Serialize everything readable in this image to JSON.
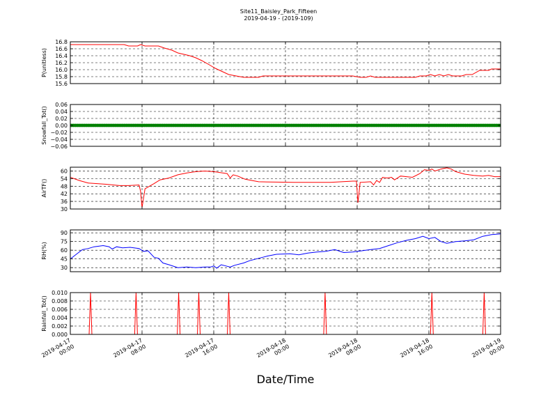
{
  "figure": {
    "title_line1": "Site11_Baisley_Park_Fifteen",
    "title_line2": "2019-04-19 - (2019-109)",
    "xlabel": "Date/Time"
  },
  "chart_data": {
    "type": "line",
    "x_axis": {
      "type": "datetime",
      "range": [
        "2019-04-17 00:00",
        "2019-04-19 00:00"
      ],
      "ticks": [
        {
          "value": "2019-04-17 00:00",
          "line1": "2019-04-17",
          "line2": "00:00"
        },
        {
          "value": "2019-04-17 08:00",
          "line1": "2019-04-17",
          "line2": "08:00"
        },
        {
          "value": "2019-04-17 16:00",
          "line1": "2019-04-17",
          "line2": "16:00"
        },
        {
          "value": "2019-04-18 00:00",
          "line1": "2019-04-18",
          "line2": "00:00"
        },
        {
          "value": "2019-04-18 08:00",
          "line1": "2019-04-18",
          "line2": "08:00"
        },
        {
          "value": "2019-04-18 16:00",
          "line1": "2019-04-18",
          "line2": "16:00"
        },
        {
          "value": "2019-04-19 00:00",
          "line1": "2019-04-19",
          "line2": "00:00"
        }
      ]
    },
    "grid": true,
    "panels": [
      {
        "ylabel": "P(unitless)",
        "ylim": [
          15.6,
          16.8
        ],
        "yticks": [
          "16.8",
          "16.6",
          "16.4",
          "16.2",
          "16.0",
          "15.8",
          "15.6"
        ],
        "ytick_values": [
          16.8,
          16.6,
          16.4,
          16.2,
          16.0,
          15.8,
          15.6
        ],
        "color": "#ff0000",
        "style": "line",
        "points": [
          [
            "2019-04-17 00:00",
            16.72
          ],
          [
            "2019-04-17 03:00",
            16.72
          ],
          [
            "2019-04-17 06:00",
            16.72
          ],
          [
            "2019-04-17 06:30",
            16.68
          ],
          [
            "2019-04-17 07:30",
            16.68
          ],
          [
            "2019-04-17 07:50",
            16.72
          ],
          [
            "2019-04-17 08:20",
            16.68
          ],
          [
            "2019-04-17 09:50",
            16.68
          ],
          [
            "2019-04-17 10:30",
            16.62
          ],
          [
            "2019-04-17 11:20",
            16.56
          ],
          [
            "2019-04-17 12:00",
            16.48
          ],
          [
            "2019-04-17 12:40",
            16.44
          ],
          [
            "2019-04-17 13:20",
            16.4
          ],
          [
            "2019-04-17 14:00",
            16.34
          ],
          [
            "2019-04-17 14:40",
            16.26
          ],
          [
            "2019-04-17 15:30",
            16.14
          ],
          [
            "2019-04-17 16:10",
            16.04
          ],
          [
            "2019-04-17 17:00",
            15.94
          ],
          [
            "2019-04-17 17:40",
            15.86
          ],
          [
            "2019-04-17 18:30",
            15.82
          ],
          [
            "2019-04-17 19:20",
            15.78
          ],
          [
            "2019-04-17 21:00",
            15.78
          ],
          [
            "2019-04-17 21:30",
            15.82
          ],
          [
            "2019-04-18 07:30",
            15.82
          ],
          [
            "2019-04-18 08:20",
            15.78
          ],
          [
            "2019-04-18 09:00",
            15.78
          ],
          [
            "2019-04-18 09:30",
            15.82
          ],
          [
            "2019-04-18 10:00",
            15.78
          ],
          [
            "2019-04-18 14:30",
            15.78
          ],
          [
            "2019-04-18 15:00",
            15.82
          ],
          [
            "2019-04-18 15:40",
            15.82
          ],
          [
            "2019-04-18 16:10",
            15.86
          ],
          [
            "2019-04-18 16:40",
            15.82
          ],
          [
            "2019-04-18 17:10",
            15.86
          ],
          [
            "2019-04-18 17:40",
            15.82
          ],
          [
            "2019-04-18 18:10",
            15.86
          ],
          [
            "2019-04-18 18:40",
            15.82
          ],
          [
            "2019-04-18 19:40",
            15.82
          ],
          [
            "2019-04-18 20:10",
            15.86
          ],
          [
            "2019-04-18 20:50",
            15.86
          ],
          [
            "2019-04-18 21:40",
            15.98
          ],
          [
            "2019-04-18 22:40",
            15.98
          ],
          [
            "2019-04-18 23:00",
            16.02
          ],
          [
            "2019-04-19 00:00",
            16.02
          ]
        ]
      },
      {
        "ylabel": "Snowfall_Tot()",
        "ylim": [
          -0.06,
          0.06
        ],
        "yticks": [
          "0.06",
          "0.04",
          "0.02",
          "0.00",
          "−0.02",
          "−0.04",
          "−0.06"
        ],
        "ytick_values": [
          0.06,
          0.04,
          0.02,
          0.0,
          -0.02,
          -0.04,
          -0.06
        ],
        "color": "#008000",
        "style": "markers",
        "constant_value": 0.0,
        "points": [
          [
            "2019-04-17 00:00",
            0.0
          ],
          [
            "2019-04-19 00:00",
            0.0
          ]
        ]
      },
      {
        "ylabel": "AirTF()",
        "ylim": [
          30,
          63
        ],
        "yticks": [
          "60",
          "54",
          "48",
          "42",
          "36",
          "30"
        ],
        "ytick_values": [
          60,
          54,
          48,
          42,
          36,
          30
        ],
        "color": "#ff0000",
        "style": "line",
        "points": [
          [
            "2019-04-17 00:00",
            55
          ],
          [
            "2019-04-17 01:00",
            52.5
          ],
          [
            "2019-04-17 02:00",
            50.5
          ],
          [
            "2019-04-17 04:00",
            49.5
          ],
          [
            "2019-04-17 05:30",
            48.5
          ],
          [
            "2019-04-17 06:30",
            48.5
          ],
          [
            "2019-04-17 07:40",
            49
          ],
          [
            "2019-04-17 07:50",
            44
          ],
          [
            "2019-04-17 08:00",
            31
          ],
          [
            "2019-04-17 08:20",
            46
          ],
          [
            "2019-04-17 09:20",
            50
          ],
          [
            "2019-04-17 10:00",
            53
          ],
          [
            "2019-04-17 11:00",
            54.5
          ],
          [
            "2019-04-17 12:00",
            57
          ],
          [
            "2019-04-17 13:00",
            58.5
          ],
          [
            "2019-04-17 14:00",
            59.5
          ],
          [
            "2019-04-17 15:00",
            60
          ],
          [
            "2019-04-17 16:00",
            59.5
          ],
          [
            "2019-04-17 17:00",
            58.5
          ],
          [
            "2019-04-17 17:30",
            58
          ],
          [
            "2019-04-17 17:50",
            54.5
          ],
          [
            "2019-04-17 18:10",
            57
          ],
          [
            "2019-04-17 18:40",
            56
          ],
          [
            "2019-04-17 19:30",
            53.5
          ],
          [
            "2019-04-17 21:00",
            51.5
          ],
          [
            "2019-04-18 01:00",
            51
          ],
          [
            "2019-04-18 05:00",
            51
          ],
          [
            "2019-04-18 07:30",
            52
          ],
          [
            "2019-04-18 07:55",
            52
          ],
          [
            "2019-04-18 08:05",
            35
          ],
          [
            "2019-04-18 08:20",
            51
          ],
          [
            "2019-04-18 09:30",
            51.5
          ],
          [
            "2019-04-18 09:50",
            49
          ],
          [
            "2019-04-18 10:10",
            52.5
          ],
          [
            "2019-04-18 10:30",
            51
          ],
          [
            "2019-04-18 10:50",
            55
          ],
          [
            "2019-04-18 11:20",
            54.5
          ],
          [
            "2019-04-18 11:50",
            55
          ],
          [
            "2019-04-18 12:10",
            53
          ],
          [
            "2019-04-18 12:50",
            56
          ],
          [
            "2019-04-18 13:30",
            55.5
          ],
          [
            "2019-04-18 14:10",
            55
          ],
          [
            "2019-04-18 15:00",
            58
          ],
          [
            "2019-04-18 15:30",
            61
          ],
          [
            "2019-04-18 16:00",
            60.5
          ],
          [
            "2019-04-18 16:20",
            61.5
          ],
          [
            "2019-04-18 16:40",
            60
          ],
          [
            "2019-04-18 17:20",
            61.5
          ],
          [
            "2019-04-18 18:00",
            62.5
          ],
          [
            "2019-04-18 18:30",
            61.5
          ],
          [
            "2019-04-18 19:00",
            59.5
          ],
          [
            "2019-04-18 20:00",
            57.5
          ],
          [
            "2019-04-18 21:00",
            56.5
          ],
          [
            "2019-04-18 22:00",
            56
          ],
          [
            "2019-04-18 22:40",
            56.5
          ],
          [
            "2019-04-18 23:20",
            55.5
          ],
          [
            "2019-04-19 00:00",
            55.5
          ]
        ]
      },
      {
        "ylabel": "RH(%)",
        "ylim": [
          23,
          95
        ],
        "yticks": [
          "90",
          "75",
          "60",
          "45",
          "30"
        ],
        "ytick_values": [
          90,
          75,
          60,
          45,
          30
        ],
        "color": "#0000ff",
        "style": "line",
        "points": [
          [
            "2019-04-17 00:00",
            45
          ],
          [
            "2019-04-17 00:40",
            53
          ],
          [
            "2019-04-17 01:20",
            61
          ],
          [
            "2019-04-17 02:00",
            63
          ],
          [
            "2019-04-17 02:40",
            66
          ],
          [
            "2019-04-17 03:40",
            68
          ],
          [
            "2019-04-17 04:20",
            66
          ],
          [
            "2019-04-17 04:40",
            62
          ],
          [
            "2019-04-17 05:10",
            66
          ],
          [
            "2019-04-17 05:50",
            64
          ],
          [
            "2019-04-17 06:40",
            65
          ],
          [
            "2019-04-17 07:40",
            63
          ],
          [
            "2019-04-17 08:10",
            58
          ],
          [
            "2019-04-17 08:40",
            59
          ],
          [
            "2019-04-17 09:20",
            48
          ],
          [
            "2019-04-17 09:50",
            46
          ],
          [
            "2019-04-17 10:20",
            38
          ],
          [
            "2019-04-17 11:00",
            35
          ],
          [
            "2019-04-17 12:00",
            30
          ],
          [
            "2019-04-17 13:00",
            31
          ],
          [
            "2019-04-17 14:00",
            30
          ],
          [
            "2019-04-17 15:00",
            31
          ],
          [
            "2019-04-17 15:40",
            31
          ],
          [
            "2019-04-17 16:00",
            33
          ],
          [
            "2019-04-17 16:20",
            29
          ],
          [
            "2019-04-17 16:50",
            35
          ],
          [
            "2019-04-17 17:20",
            33
          ],
          [
            "2019-04-17 17:50",
            31
          ],
          [
            "2019-04-17 18:20",
            34
          ],
          [
            "2019-04-17 19:20",
            38
          ],
          [
            "2019-04-17 20:00",
            42
          ],
          [
            "2019-04-17 21:00",
            46
          ],
          [
            "2019-04-17 22:00",
            50
          ],
          [
            "2019-04-17 23:00",
            53
          ],
          [
            "2019-04-18 00:30",
            54
          ],
          [
            "2019-04-18 01:30",
            52
          ],
          [
            "2019-04-18 02:30",
            55
          ],
          [
            "2019-04-18 03:30",
            57
          ],
          [
            "2019-04-18 04:30",
            58
          ],
          [
            "2019-04-18 05:30",
            61
          ],
          [
            "2019-04-18 06:30",
            56
          ],
          [
            "2019-04-18 07:30",
            57
          ],
          [
            "2019-04-18 08:30",
            59
          ],
          [
            "2019-04-18 09:30",
            61
          ],
          [
            "2019-04-18 10:30",
            63
          ],
          [
            "2019-04-18 11:30",
            68
          ],
          [
            "2019-04-18 12:30",
            73
          ],
          [
            "2019-04-18 13:30",
            77
          ],
          [
            "2019-04-18 14:30",
            80
          ],
          [
            "2019-04-18 15:20",
            84
          ],
          [
            "2019-04-18 16:00",
            80
          ],
          [
            "2019-04-18 16:40",
            82
          ],
          [
            "2019-04-18 17:20",
            75
          ],
          [
            "2019-04-18 18:00",
            72
          ],
          [
            "2019-04-18 19:00",
            75
          ],
          [
            "2019-04-18 20:00",
            76
          ],
          [
            "2019-04-18 21:00",
            78
          ],
          [
            "2019-04-18 22:00",
            84
          ],
          [
            "2019-04-18 23:00",
            87
          ],
          [
            "2019-04-19 00:00",
            88
          ]
        ]
      },
      {
        "ylabel": "Rainfall_Tot()",
        "ylim": [
          0.0,
          0.01
        ],
        "yticks": [
          "0.010",
          "0.008",
          "0.006",
          "0.004",
          "0.002",
          "0.000"
        ],
        "ytick_values": [
          0.01,
          0.008,
          0.006,
          0.004,
          0.002,
          0.0
        ],
        "color": "#ff0000",
        "style": "spikes",
        "spike_value": 0.01,
        "spikes": [
          "2019-04-17 02:15",
          "2019-04-17 07:20",
          "2019-04-17 12:05",
          "2019-04-17 14:20",
          "2019-04-17 17:40",
          "2019-04-18 04:25",
          "2019-04-18 16:20",
          "2019-04-18 22:10"
        ]
      }
    ]
  }
}
